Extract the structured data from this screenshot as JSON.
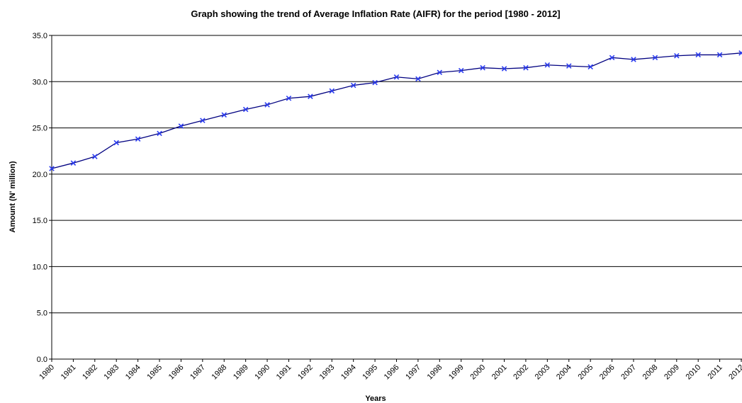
{
  "chart_data": {
    "type": "line",
    "title": "Graph showing the trend of Average Inflation Rate (AIFR) for the period [1980 - 2012]",
    "x_label": "Years",
    "y_label": "Amount (N' million)",
    "categories": [
      "1980",
      "1981",
      "1982",
      "1983",
      "1984",
      "1985",
      "1986",
      "1987",
      "1988",
      "1989",
      "1990",
      "1991",
      "1992",
      "1993",
      "1994",
      "1995",
      "1996",
      "1997",
      "1998",
      "1999",
      "2000",
      "2001",
      "2002",
      "2003",
      "2004",
      "2005",
      "2006",
      "2007",
      "2008",
      "2009",
      "2010",
      "2011",
      "2012"
    ],
    "series": [
      {
        "name": "AIFR",
        "color": "#000080",
        "marker_color": "#2b3cf0",
        "values": [
          20.6,
          21.2,
          21.9,
          23.4,
          23.8,
          24.4,
          25.2,
          25.8,
          26.4,
          27.0,
          27.5,
          28.2,
          28.4,
          29.0,
          29.6,
          29.9,
          30.5,
          30.3,
          31.0,
          31.2,
          31.5,
          31.4,
          31.5,
          31.8,
          31.7,
          31.6,
          32.6,
          32.4,
          32.6,
          32.8,
          32.9,
          32.9,
          33.1
        ]
      }
    ],
    "ylim": [
      0,
      35
    ],
    "yticks": [
      {
        "value": 0,
        "label": "0.0"
      },
      {
        "value": 5,
        "label": "5.0"
      },
      {
        "value": 10,
        "label": "10.0"
      },
      {
        "value": 15,
        "label": "15.0"
      },
      {
        "value": 20,
        "label": "20.0"
      },
      {
        "value": 25,
        "label": "25.0"
      },
      {
        "value": 30,
        "label": "30.0"
      },
      {
        "value": 35,
        "label": "35.0"
      }
    ],
    "grid": true,
    "legend": false
  }
}
